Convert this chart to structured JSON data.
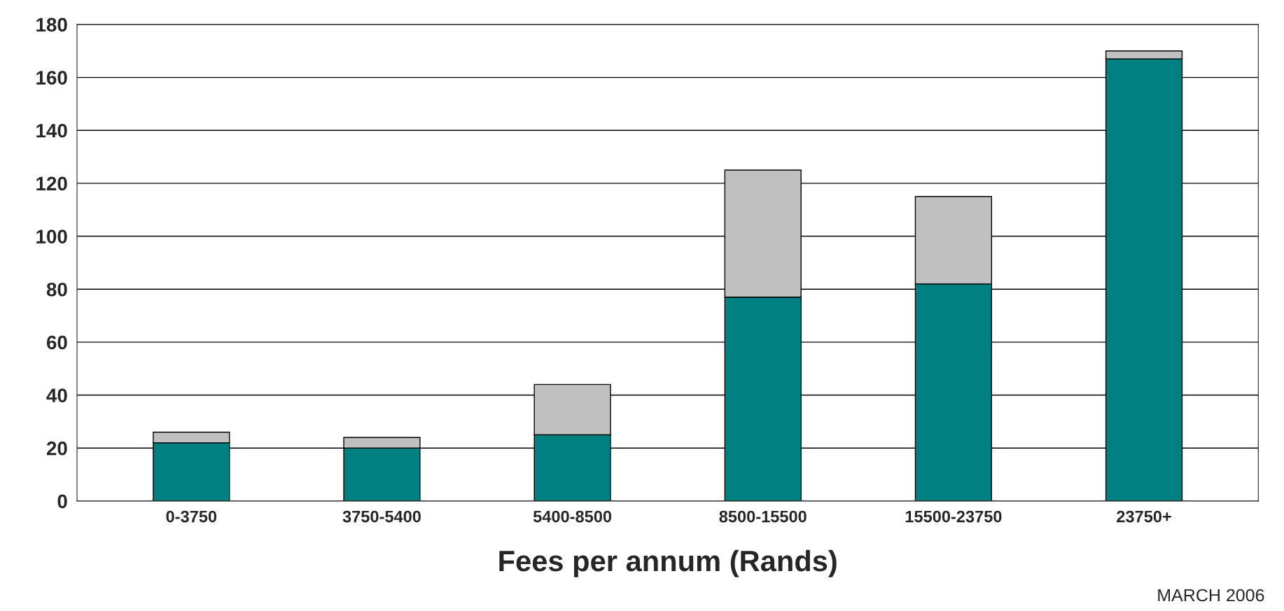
{
  "chart_data": {
    "type": "bar",
    "stacked": true,
    "xlabel": "Fees per annum (Rands)",
    "categories": [
      "0-3750",
      "3750-5400",
      "5400-8500",
      "8500-15500",
      "15500-23750",
      "23750+"
    ],
    "series": [
      {
        "color": "#008080",
        "values": [
          22,
          20,
          25,
          77,
          82,
          167
        ]
      },
      {
        "color": "#c0c0c0",
        "values": [
          4,
          4,
          19,
          48,
          33,
          3
        ]
      }
    ],
    "ylim": [
      0,
      180
    ],
    "yticks": [
      0,
      20,
      40,
      60,
      80,
      100,
      120,
      140,
      160,
      180
    ],
    "grid": "y",
    "legend": false,
    "annotations": [
      "MARCH 2006"
    ]
  }
}
